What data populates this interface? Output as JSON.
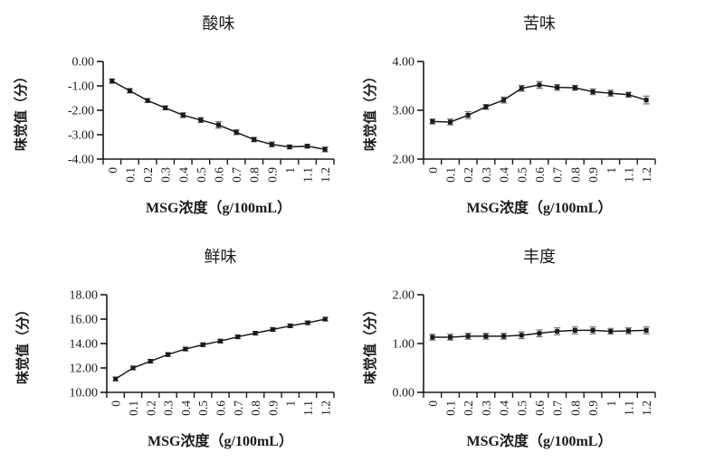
{
  "page": {
    "background": "#ffffff",
    "text_color": "#1a1a1a",
    "axis_color": "#1a1a1a",
    "error_bar_color": "#666666"
  },
  "chart_data": [
    {
      "id": "sour",
      "type": "line",
      "title": "酸味",
      "xlabel": "MSG浓度（g/100mL）",
      "ylabel": "味觉值（分）",
      "legend": "none",
      "grid": false,
      "marker": "filled-square",
      "line_color": "#1a1a1a",
      "categories": [
        "0",
        "0.1",
        "0.2",
        "0.3",
        "0.4",
        "0.5",
        "0.6",
        "0.7",
        "0.8",
        "0.9",
        "1",
        "1.1",
        "1.2"
      ],
      "values": [
        -0.8,
        -1.2,
        -1.6,
        -1.9,
        -2.2,
        -2.4,
        -2.6,
        -2.9,
        -3.2,
        -3.4,
        -3.5,
        -3.47,
        -3.6
      ],
      "errors": [
        0.09,
        0.09,
        0.08,
        0.08,
        0.1,
        0.1,
        0.13,
        0.1,
        0.09,
        0.1,
        0.08,
        0.08,
        0.1
      ],
      "ylim": [
        -4,
        0
      ],
      "ytick_labels": [
        "0.00",
        "-1.00",
        "-2.00",
        "-3.00",
        "-4.00"
      ],
      "ytick_values": [
        0,
        -1,
        -2,
        -3,
        -4
      ]
    },
    {
      "id": "bitter",
      "type": "line",
      "title": "苦味",
      "xlabel": "MSG浓度（g/100mL）",
      "ylabel": "味觉值（分）",
      "legend": "none",
      "grid": false,
      "marker": "filled-square",
      "line_color": "#1a1a1a",
      "categories": [
        "0",
        "0.1",
        "0.2",
        "0.3",
        "0.4",
        "0.5",
        "0.6",
        "0.7",
        "0.8",
        "0.9",
        "1",
        "1.1",
        "1.2"
      ],
      "values": [
        2.77,
        2.76,
        2.9,
        3.07,
        3.21,
        3.45,
        3.52,
        3.47,
        3.46,
        3.38,
        3.35,
        3.32,
        3.21
      ],
      "errors": [
        0.05,
        0.06,
        0.07,
        0.05,
        0.06,
        0.06,
        0.07,
        0.06,
        0.05,
        0.06,
        0.06,
        0.05,
        0.08
      ],
      "ylim": [
        2,
        4
      ],
      "ytick_labels": [
        "4.00",
        "3.00",
        "2.00"
      ],
      "ytick_values": [
        4,
        3,
        2
      ]
    },
    {
      "id": "umami",
      "type": "line",
      "title": "鲜味",
      "xlabel": "MSG浓度（g/100mL）",
      "ylabel": "味觉值（分）",
      "legend": "none",
      "grid": false,
      "marker": "filled-square",
      "line_color": "#1a1a1a",
      "categories": [
        "0",
        "0.1",
        "0.2",
        "0.3",
        "0.4",
        "0.5",
        "0.6",
        "0.7",
        "0.8",
        "0.9",
        "1",
        "1.1",
        "1.2"
      ],
      "values": [
        11.1,
        12.0,
        12.55,
        13.1,
        13.55,
        13.9,
        14.2,
        14.55,
        14.85,
        15.15,
        15.45,
        15.7,
        16.0
      ],
      "errors": [
        0.15,
        0.15,
        0.15,
        0.15,
        0.15,
        0.15,
        0.15,
        0.15,
        0.15,
        0.15,
        0.15,
        0.15,
        0.15
      ],
      "ylim": [
        10,
        18
      ],
      "ytick_labels": [
        "18.00",
        "16.00",
        "14.00",
        "12.00",
        "10.00"
      ],
      "ytick_values": [
        18,
        16,
        14,
        12,
        10
      ]
    },
    {
      "id": "richness",
      "type": "line",
      "title": "丰度",
      "xlabel": "MSG浓度（g/100mL）",
      "ylabel": "味觉值（分）",
      "legend": "none",
      "grid": false,
      "marker": "filled-square",
      "line_color": "#1a1a1a",
      "categories": [
        "0",
        "0.1",
        "0.2",
        "0.3",
        "0.4",
        "0.5",
        "0.6",
        "0.7",
        "0.8",
        "0.9",
        "1",
        "1.1",
        "1.2"
      ],
      "values": [
        1.13,
        1.13,
        1.15,
        1.15,
        1.15,
        1.17,
        1.21,
        1.25,
        1.27,
        1.27,
        1.25,
        1.26,
        1.27
      ],
      "errors": [
        0.06,
        0.06,
        0.06,
        0.06,
        0.06,
        0.07,
        0.07,
        0.07,
        0.07,
        0.07,
        0.06,
        0.06,
        0.07
      ],
      "ylim": [
        0,
        2
      ],
      "ytick_labels": [
        "2.00",
        "1.00",
        "0.00"
      ],
      "ytick_values": [
        2,
        1,
        0
      ]
    }
  ]
}
